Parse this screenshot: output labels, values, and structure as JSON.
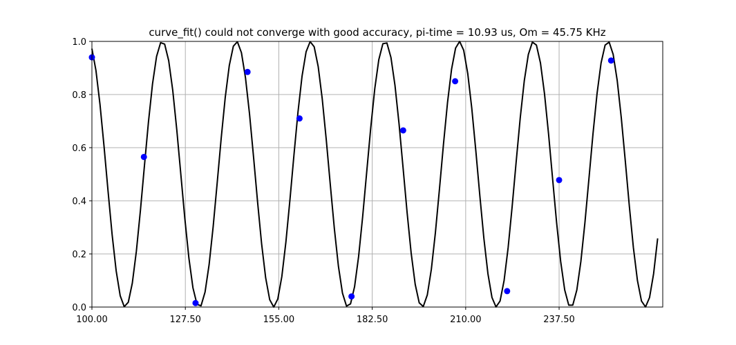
{
  "chart_data": {
    "type": "line",
    "title": "curve_fit() could not converge with good accuracy, pi-time = 10.93 us, Om = 45.75 KHz",
    "xlabel": "",
    "ylabel": "",
    "xlim": [
      100,
      268
    ],
    "ylim": [
      0,
      1.0
    ],
    "grid": true,
    "xticks": [
      100,
      127.5,
      155,
      182.5,
      210,
      237.5
    ],
    "xtick_labels": [
      "100.00",
      "127.50",
      "155.00",
      "182.50",
      "210.00",
      "237.50"
    ],
    "yticks": [
      0,
      0.2,
      0.4,
      0.6,
      0.8,
      1.0
    ],
    "ytick_labels": [
      "0.0",
      "0.2",
      "0.4",
      "0.6",
      "0.8",
      "1.0"
    ],
    "series": [
      {
        "kind": "line",
        "color": "#000000",
        "fit": {
          "period": 21.86,
          "peak_x": 120.7,
          "x_start": 100,
          "x_end": 266.5,
          "samples": 140
        }
      },
      {
        "kind": "scatter",
        "color": "#0000ff",
        "x": [
          100,
          115.3,
          130.5,
          145.8,
          161.1,
          176.4,
          191.6,
          206.9,
          222.2,
          237.5,
          252.8
        ],
        "y": [
          0.94,
          0.565,
          0.015,
          0.885,
          0.71,
          0.04,
          0.665,
          0.85,
          0.06,
          0.478,
          0.928
        ]
      }
    ]
  }
}
